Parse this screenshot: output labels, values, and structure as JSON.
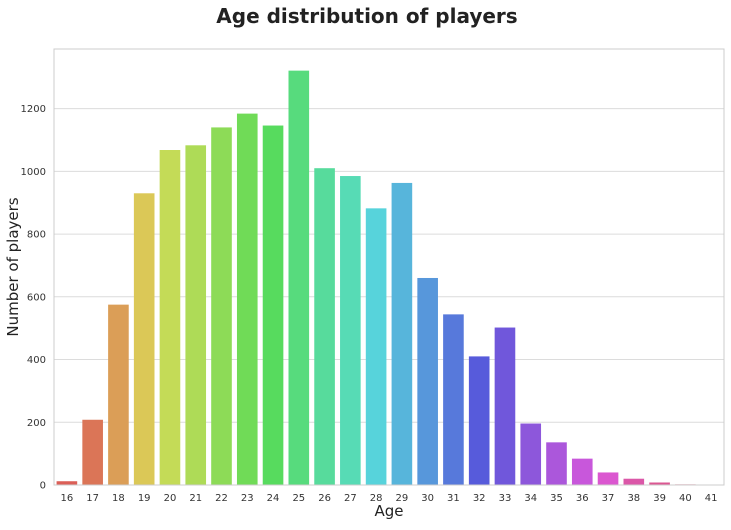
{
  "chart_data": {
    "type": "bar",
    "title": "Age distribution of players",
    "xlabel": "Age",
    "ylabel": "Number of players",
    "categories": [
      "16",
      "17",
      "18",
      "19",
      "20",
      "21",
      "22",
      "23",
      "24",
      "25",
      "26",
      "27",
      "28",
      "29",
      "30",
      "31",
      "32",
      "33",
      "34",
      "35",
      "36",
      "37",
      "38",
      "39",
      "40",
      "41"
    ],
    "values": [
      12,
      208,
      575,
      930,
      1068,
      1083,
      1140,
      1184,
      1146,
      1321,
      1010,
      985,
      882,
      963,
      660,
      544,
      410,
      502,
      196,
      136,
      84,
      40,
      20,
      8,
      2,
      1
    ],
    "ylim": [
      0,
      1390
    ],
    "yticks": [
      0,
      200,
      400,
      600,
      800,
      1000,
      1200
    ],
    "grid": true,
    "colors": [
      "#db5f57",
      "#db7557",
      "#db9e57",
      "#dbc857",
      "#c4db57",
      "#aedb57",
      "#8ddb57",
      "#70db57",
      "#57db5e",
      "#57db7d",
      "#57db9c",
      "#57dbb5",
      "#57d3db",
      "#57b5db",
      "#5797db",
      "#5779db",
      "#575bdb",
      "#7057db",
      "#8d57db",
      "#ab57db",
      "#c857db",
      "#db57d0",
      "#db57a8",
      "#db5792",
      "#db5779",
      "#db5766"
    ]
  }
}
